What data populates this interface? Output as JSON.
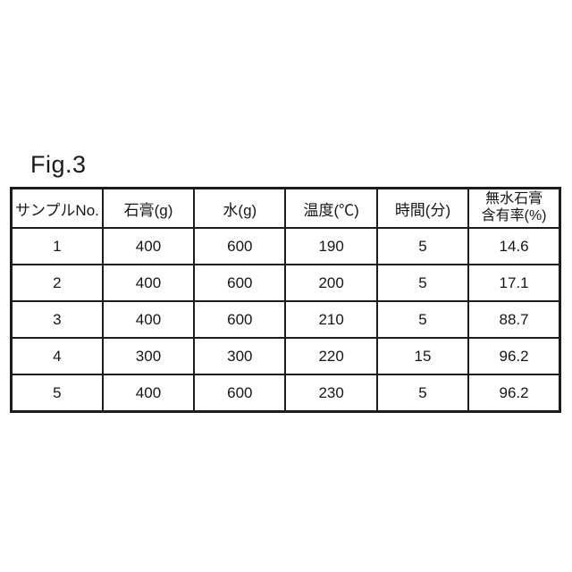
{
  "figure": {
    "label": "Fig.3"
  },
  "table": {
    "headers": [
      "サンプルNo.",
      "石膏(g)",
      "水(g)",
      "温度(℃)",
      "時間(分)"
    ],
    "header_last": {
      "line1": "無水石膏",
      "line2": "含有率(%)"
    },
    "rows": [
      [
        "1",
        "400",
        "600",
        "190",
        "5",
        "14.6"
      ],
      [
        "2",
        "400",
        "600",
        "200",
        "5",
        "17.1"
      ],
      [
        "3",
        "400",
        "600",
        "210",
        "5",
        "88.7"
      ],
      [
        "4",
        "300",
        "300",
        "220",
        "15",
        "96.2"
      ],
      [
        "5",
        "400",
        "600",
        "230",
        "5",
        "96.2"
      ]
    ]
  },
  "chart_data": {
    "type": "table",
    "title": "Fig.3",
    "columns": [
      "サンプルNo.",
      "石膏(g)",
      "水(g)",
      "温度(℃)",
      "時間(分)",
      "無水石膏含有率(%)"
    ],
    "rows": [
      [
        1,
        400,
        600,
        190,
        5,
        14.6
      ],
      [
        2,
        400,
        600,
        200,
        5,
        17.1
      ],
      [
        3,
        400,
        600,
        210,
        5,
        88.7
      ],
      [
        4,
        300,
        300,
        220,
        15,
        96.2
      ],
      [
        5,
        400,
        600,
        230,
        5,
        96.2
      ]
    ]
  }
}
